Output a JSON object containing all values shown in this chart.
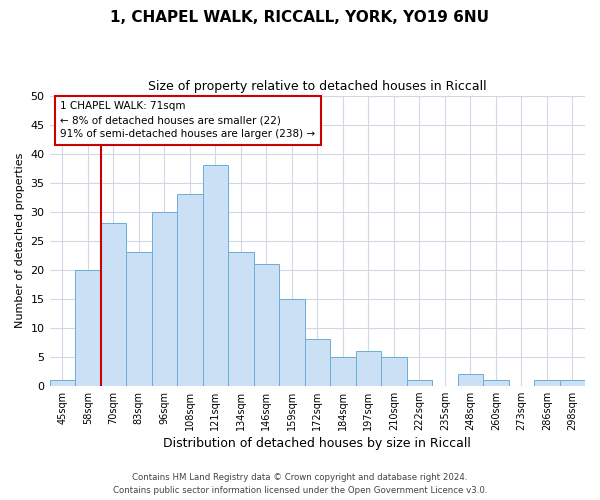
{
  "title_line1": "1, CHAPEL WALK, RICCALL, YORK, YO19 6NU",
  "title_line2": "Size of property relative to detached houses in Riccall",
  "xlabel": "Distribution of detached houses by size in Riccall",
  "ylabel": "Number of detached properties",
  "bar_labels": [
    "45sqm",
    "58sqm",
    "70sqm",
    "83sqm",
    "96sqm",
    "108sqm",
    "121sqm",
    "134sqm",
    "146sqm",
    "159sqm",
    "172sqm",
    "184sqm",
    "197sqm",
    "210sqm",
    "222sqm",
    "235sqm",
    "248sqm",
    "260sqm",
    "273sqm",
    "286sqm",
    "298sqm"
  ],
  "bar_values": [
    1,
    20,
    28,
    23,
    30,
    33,
    38,
    23,
    21,
    15,
    8,
    5,
    6,
    5,
    1,
    0,
    2,
    1,
    0,
    1,
    1
  ],
  "bar_color": "#cce0f5",
  "bar_edge_color": "#6aaed6",
  "grid_color": "#d0d8e8",
  "vline_x_index": 2,
  "vline_color": "#cc0000",
  "annotation_title": "1 CHAPEL WALK: 71sqm",
  "annotation_line1": "← 8% of detached houses are smaller (22)",
  "annotation_line2": "91% of semi-detached houses are larger (238) →",
  "annotation_box_color": "#cc0000",
  "ylim": [
    0,
    50
  ],
  "yticks": [
    0,
    5,
    10,
    15,
    20,
    25,
    30,
    35,
    40,
    45,
    50
  ],
  "footer_line1": "Contains HM Land Registry data © Crown copyright and database right 2024.",
  "footer_line2": "Contains public sector information licensed under the Open Government Licence v3.0."
}
